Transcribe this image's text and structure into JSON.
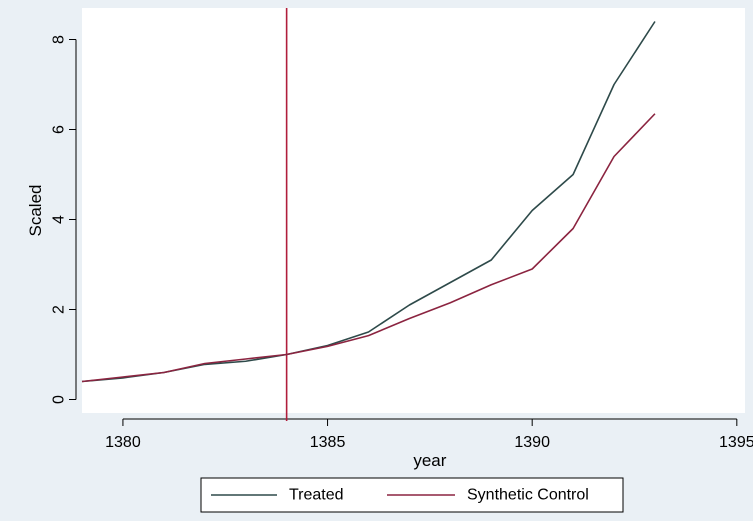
{
  "chart_data": {
    "type": "line",
    "xlabel": "year",
    "ylabel": "Scaled",
    "xlim": [
      1379,
      1395.2
    ],
    "ylim": [
      -0.3,
      8.7
    ],
    "xticks": [
      1380,
      1385,
      1390,
      1395
    ],
    "yticks": [
      0,
      2,
      4,
      6,
      8
    ],
    "grid": false,
    "legend_position": "bottom",
    "vertical_line": {
      "x": 1384,
      "color": "#b01e3c"
    },
    "x": [
      1379,
      1380,
      1381,
      1382,
      1383,
      1384,
      1385,
      1386,
      1387,
      1388,
      1389,
      1390,
      1391,
      1392,
      1393
    ],
    "series": [
      {
        "name": "Treated",
        "color": "#2e4a4a",
        "values": [
          0.4,
          0.48,
          0.6,
          0.78,
          0.85,
          1.0,
          1.2,
          1.5,
          2.1,
          2.6,
          3.1,
          4.2,
          5.0,
          7.0,
          8.4
        ]
      },
      {
        "name": "Synthetic Control",
        "color": "#8b2440",
        "values": [
          0.4,
          0.5,
          0.6,
          0.8,
          0.9,
          1.0,
          1.18,
          1.42,
          1.8,
          2.15,
          2.55,
          2.9,
          3.8,
          5.4,
          6.35
        ]
      }
    ],
    "colors": {
      "outer_background": "#eaf0f5",
      "plot_background": "#ffffff",
      "axis": "#000000"
    }
  }
}
